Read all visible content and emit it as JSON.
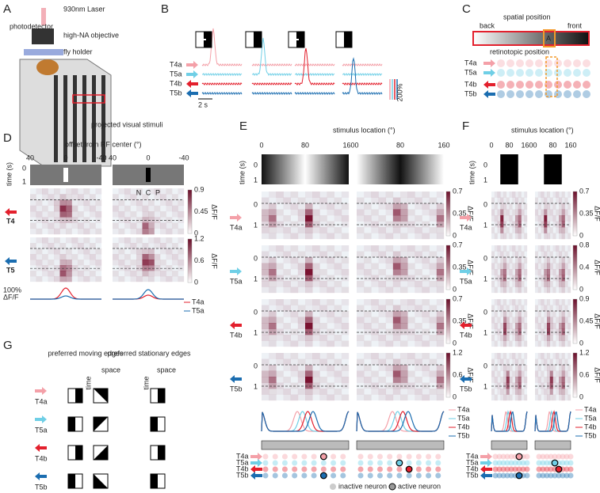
{
  "neurons": [
    {
      "name": "T4a",
      "color": "#f4a0a8"
    },
    {
      "name": "T5a",
      "color": "#6fcfe6"
    },
    {
      "name": "T4b",
      "color": "#e3202d"
    },
    {
      "name": "T5b",
      "color": "#1b6db0"
    }
  ],
  "A": {
    "label": "A",
    "photodetector": "photodetector",
    "laser": "930nm Laser",
    "objective": "high-NA objective",
    "holder": "fly holder",
    "stimuli": "projected visual stimuli"
  },
  "B": {
    "label": "B",
    "time_scale": "2 s",
    "df_scale": "200%"
  },
  "C": {
    "label": "C",
    "spatial": "spatial position",
    "back": "back",
    "front": "front",
    "roi": "A",
    "retinotopic": "retinotopic position"
  },
  "D": {
    "label": "D",
    "title": "offset from RF center (°)",
    "xticks": [
      "40",
      "0",
      "-40"
    ],
    "time": "time (s)",
    "tticks": [
      "0",
      "1"
    ],
    "ncp": [
      "N",
      "C",
      "P"
    ],
    "rows": [
      "T4",
      "T5"
    ],
    "cbar": [
      [
        "0.9",
        "0.45",
        "0"
      ],
      [
        "1.2",
        "0.6",
        "0"
      ]
    ],
    "dff": "ΔF/F",
    "scale": "100%",
    "scale_unit": "ΔF/F"
  },
  "E": {
    "label": "E",
    "title": "stimulus location (°)",
    "xticks": [
      "0",
      "80",
      "160"
    ],
    "time": "time (s)",
    "tticks": [
      "0",
      "1"
    ],
    "cbar": [
      [
        "0.7",
        "0.35",
        "0"
      ],
      [
        "0.7",
        "0.35",
        "0"
      ],
      [
        "0.7",
        "0.35",
        "0"
      ],
      [
        "1.2",
        "0.6",
        "0"
      ]
    ],
    "dff": "ΔF/F",
    "yticks": [
      "1",
      "0"
    ],
    "inactive": "inactive neuron",
    "active": "active neuron"
  },
  "F": {
    "label": "F",
    "title": "stimulus location (°)",
    "xticks": [
      "0",
      "80",
      "160"
    ],
    "time": "time (s)",
    "tticks": [
      "0",
      "1"
    ],
    "cbar": [
      [
        "0.7",
        "0.35",
        "0"
      ],
      [
        "0.8",
        "0.4",
        "0"
      ],
      [
        "0.9",
        "0.45",
        "0"
      ],
      [
        "1.2",
        "0.6",
        "0"
      ]
    ],
    "dff": "ΔF/F",
    "yticks": [
      "1",
      "0"
    ]
  },
  "G": {
    "label": "G",
    "moving": "preferred moving edges",
    "stationary": "preferred stationary edges",
    "time": "time",
    "space": "space"
  }
}
